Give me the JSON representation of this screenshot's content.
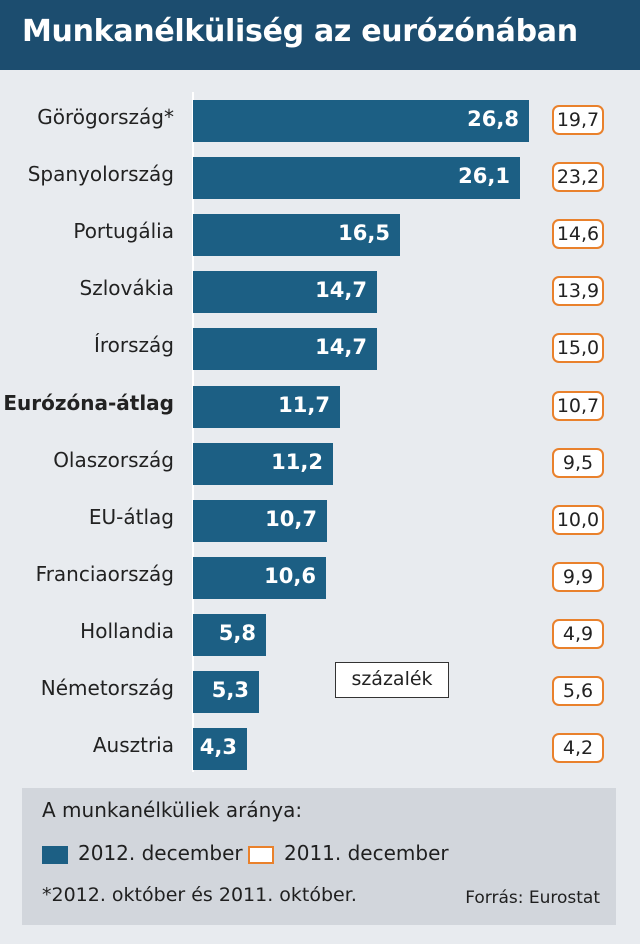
{
  "header": {
    "title": "Munkanélküliség az eurózónában"
  },
  "chart_data": {
    "type": "bar",
    "orientation": "horizontal",
    "title": "Munkanélküliség az eurózónában",
    "unit_label": "százalék",
    "categories": [
      "Görögország*",
      "Spanyolország",
      "Portugália",
      "Szlovákia",
      "Írország",
      "Eurózóna-átlag",
      "Olaszország",
      "EU-átlag",
      "Franciaország",
      "Hollandia",
      "Németország",
      "Ausztria"
    ],
    "highlight_categories": [
      "Eurózóna-átlag"
    ],
    "series": [
      {
        "name": "2012. december",
        "color": "#1c5f84",
        "values": [
          26.8,
          26.1,
          16.5,
          14.7,
          14.7,
          11.7,
          11.2,
          10.7,
          10.6,
          5.8,
          5.3,
          4.3
        ],
        "labels": [
          "26,8",
          "26,1",
          "16,5",
          "14,7",
          "14,7",
          "11,7",
          "11,2",
          "10,7",
          "10,6",
          "5,8",
          "5,3",
          "4,3"
        ]
      },
      {
        "name": "2011. december",
        "color": "#e9812c",
        "values": [
          19.7,
          23.2,
          14.6,
          13.9,
          15.0,
          10.7,
          9.5,
          10.0,
          9.9,
          4.9,
          5.6,
          4.2
        ],
        "labels": [
          "19,7",
          "23,2",
          "14,6",
          "13,9",
          "15,0",
          "10,7",
          "9,5",
          "10,0",
          "9,9",
          "4,9",
          "5,6",
          "4,2"
        ]
      }
    ],
    "xlim": [
      0,
      26.8
    ],
    "grid": false
  },
  "legend": {
    "title": "A munkanélküliek aránya:",
    "items": [
      {
        "label": "2012. december",
        "style": "filled",
        "color": "#1c5f84"
      },
      {
        "label": "2011. december",
        "style": "outline",
        "color": "#e9812c"
      }
    ]
  },
  "footnote": "*2012. október és 2011. október.",
  "source": "Forrás: Eurostat"
}
